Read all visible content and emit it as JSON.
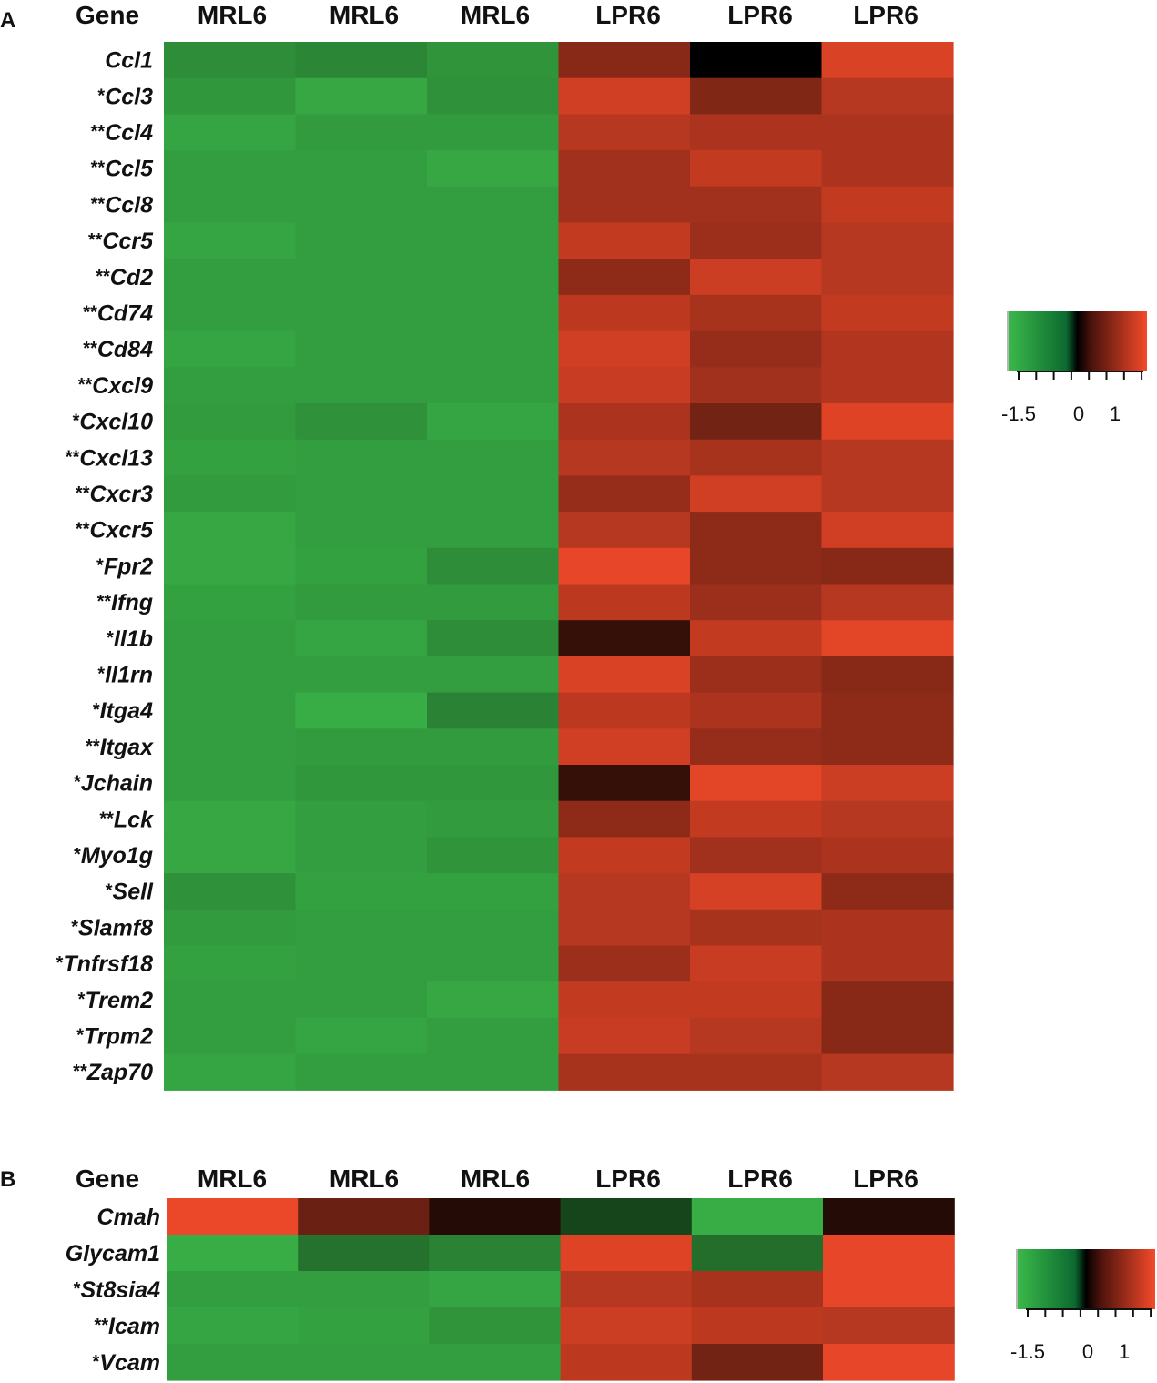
{
  "chart_data": [
    {
      "panel": "A",
      "type": "heatmap",
      "columns": [
        "MRL6",
        "MRL6",
        "MRL6",
        "LPR6",
        "LPR6",
        "LPR6"
      ],
      "gene_header": "Gene",
      "rows": [
        {
          "gene": "Ccl1",
          "stars": "",
          "values": [
            -1.1,
            -1.0,
            -1.2,
            0.55,
            0.0,
            1.3
          ]
        },
        {
          "gene": "Ccl3",
          "stars": "*",
          "values": [
            -1.25,
            -1.5,
            -1.15,
            1.2,
            0.5,
            0.95
          ]
        },
        {
          "gene": "Ccl4",
          "stars": "**",
          "values": [
            -1.45,
            -1.3,
            -1.3,
            0.95,
            0.85,
            0.85
          ]
        },
        {
          "gene": "Ccl5",
          "stars": "**",
          "values": [
            -1.35,
            -1.35,
            -1.5,
            0.75,
            1.05,
            0.85
          ]
        },
        {
          "gene": "Ccl8",
          "stars": "**",
          "values": [
            -1.35,
            -1.35,
            -1.35,
            0.75,
            0.75,
            1.05
          ]
        },
        {
          "gene": "Ccr5",
          "stars": "**",
          "values": [
            -1.45,
            -1.35,
            -1.35,
            1.05,
            0.7,
            0.95
          ]
        },
        {
          "gene": "Cd2",
          "stars": "**",
          "values": [
            -1.35,
            -1.35,
            -1.35,
            0.6,
            1.15,
            0.95
          ]
        },
        {
          "gene": "Cd74",
          "stars": "**",
          "values": [
            -1.35,
            -1.35,
            -1.35,
            1.0,
            0.8,
            1.05
          ]
        },
        {
          "gene": "Cd84",
          "stars": "**",
          "values": [
            -1.45,
            -1.35,
            -1.35,
            1.2,
            0.65,
            0.9
          ]
        },
        {
          "gene": "Cxcl9",
          "stars": "**",
          "values": [
            -1.35,
            -1.35,
            -1.35,
            1.1,
            0.75,
            0.9
          ]
        },
        {
          "gene": "Cxcl10",
          "stars": "*",
          "values": [
            -1.3,
            -1.15,
            -1.45,
            0.85,
            0.4,
            1.35
          ]
        },
        {
          "gene": "Cxcl13",
          "stars": "**",
          "values": [
            -1.4,
            -1.35,
            -1.35,
            0.95,
            0.8,
            0.95
          ]
        },
        {
          "gene": "Cxcr3",
          "stars": "**",
          "values": [
            -1.3,
            -1.35,
            -1.35,
            0.65,
            1.2,
            0.95
          ]
        },
        {
          "gene": "Cxcr5",
          "stars": "**",
          "values": [
            -1.5,
            -1.35,
            -1.35,
            0.95,
            0.6,
            1.2
          ]
        },
        {
          "gene": "Fpr2",
          "stars": "*",
          "values": [
            -1.5,
            -1.4,
            -1.1,
            1.45,
            0.6,
            0.55
          ]
        },
        {
          "gene": "Ifng",
          "stars": "**",
          "values": [
            -1.4,
            -1.3,
            -1.3,
            1.0,
            0.7,
            0.95
          ]
        },
        {
          "gene": "Il1b",
          "stars": "*",
          "values": [
            -1.35,
            -1.45,
            -1.1,
            0.1,
            1.05,
            1.4
          ]
        },
        {
          "gene": "Il1rn",
          "stars": "*",
          "values": [
            -1.35,
            -1.35,
            -1.35,
            1.3,
            0.7,
            0.55
          ]
        },
        {
          "gene": "Itga4",
          "stars": "*",
          "values": [
            -1.35,
            -1.6,
            -0.95,
            1.0,
            0.85,
            0.6
          ]
        },
        {
          "gene": "Itgax",
          "stars": "**",
          "values": [
            -1.35,
            -1.3,
            -1.3,
            1.2,
            0.65,
            0.6
          ]
        },
        {
          "gene": "Jchain",
          "stars": "*",
          "values": [
            -1.35,
            -1.25,
            -1.25,
            0.1,
            1.4,
            1.15
          ]
        },
        {
          "gene": "Lck",
          "stars": "**",
          "values": [
            -1.5,
            -1.35,
            -1.3,
            0.6,
            1.05,
            0.95
          ]
        },
        {
          "gene": "Myo1g",
          "stars": "*",
          "values": [
            -1.5,
            -1.35,
            -1.2,
            1.05,
            0.75,
            0.85
          ]
        },
        {
          "gene": "Sell",
          "stars": "*",
          "values": [
            -1.15,
            -1.4,
            -1.4,
            0.95,
            1.25,
            0.6
          ]
        },
        {
          "gene": "Slamf8",
          "stars": "*",
          "values": [
            -1.3,
            -1.35,
            -1.35,
            0.95,
            0.8,
            0.85
          ]
        },
        {
          "gene": "Tnfrsf18",
          "stars": "*",
          "values": [
            -1.4,
            -1.35,
            -1.35,
            0.7,
            1.1,
            0.85
          ]
        },
        {
          "gene": "Trem2",
          "stars": "*",
          "values": [
            -1.35,
            -1.35,
            -1.5,
            1.05,
            1.05,
            0.55
          ]
        },
        {
          "gene": "Trpm2",
          "stars": "*",
          "values": [
            -1.35,
            -1.45,
            -1.35,
            1.1,
            0.95,
            0.55
          ]
        },
        {
          "gene": "Zap70",
          "stars": "**",
          "values": [
            -1.45,
            -1.35,
            -1.35,
            0.8,
            0.8,
            0.95
          ]
        }
      ],
      "color_scale": {
        "low": "#3cb94a",
        "mid": "#000000",
        "high": "#f44a2a"
      },
      "legend_ticks": [
        "-1.5",
        "0",
        "1"
      ],
      "value_range": [
        -1.8,
        1.6
      ]
    },
    {
      "panel": "B",
      "type": "heatmap",
      "columns": [
        "MRL6",
        "MRL6",
        "MRL6",
        "LPR6",
        "LPR6",
        "LPR6"
      ],
      "gene_header": "Gene",
      "rows": [
        {
          "gene": "Cmah",
          "stars": "",
          "values": [
            1.5,
            0.35,
            0.05,
            -0.3,
            -1.6,
            0.05
          ]
        },
        {
          "gene": "Glycam1",
          "stars": "",
          "values": [
            -1.6,
            -0.75,
            -0.95,
            1.35,
            -0.7,
            1.45
          ]
        },
        {
          "gene": "St8sia4",
          "stars": "*",
          "values": [
            -1.35,
            -1.35,
            -1.45,
            0.95,
            0.8,
            1.45
          ]
        },
        {
          "gene": "Icam",
          "stars": "**",
          "values": [
            -1.45,
            -1.4,
            -1.2,
            1.15,
            1.0,
            0.95
          ]
        },
        {
          "gene": "Vcam",
          "stars": "*",
          "values": [
            -1.35,
            -1.35,
            -1.35,
            1.0,
            0.4,
            1.45
          ]
        }
      ],
      "color_scale": {
        "low": "#3cb94a",
        "mid": "#000000",
        "high": "#f44a2a"
      },
      "legend_ticks": [
        "-1.5",
        "0",
        "1"
      ],
      "value_range": [
        -1.8,
        1.6
      ]
    }
  ]
}
